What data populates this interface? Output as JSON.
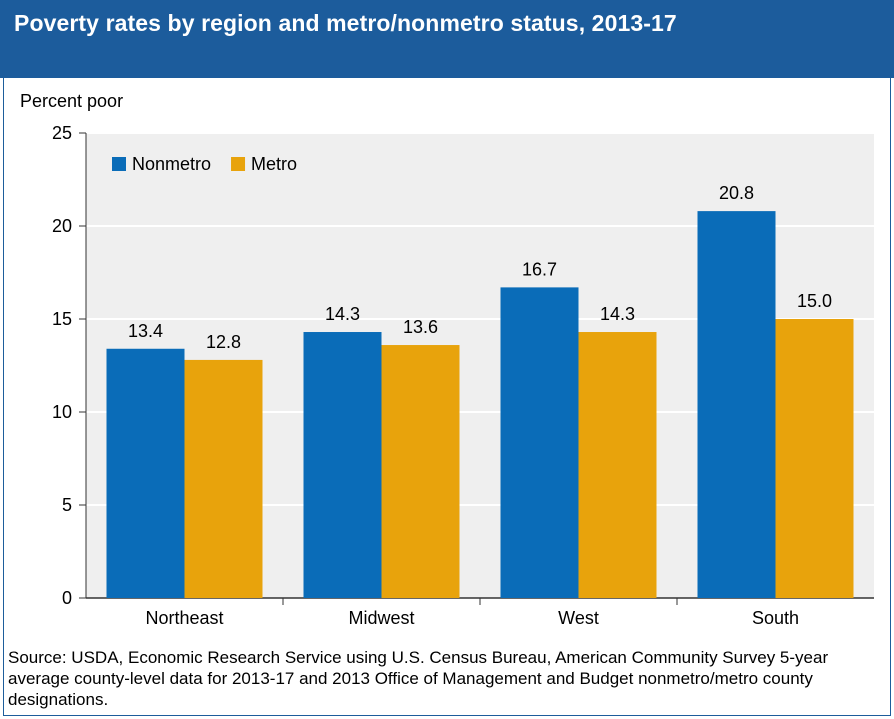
{
  "header": {
    "title": "Poverty rates by region and metro/nonmetro status, 2013-17",
    "bg_color": "#1c5c9c"
  },
  "chart_data": {
    "type": "bar",
    "title": "Poverty rates by region and metro/nonmetro status, 2013-17",
    "ylabel": "Percent poor",
    "xlabel": "",
    "categories": [
      "Northeast",
      "Midwest",
      "West",
      "South"
    ],
    "series": [
      {
        "name": "Nonmetro",
        "values": [
          13.4,
          14.3,
          16.7,
          20.8
        ],
        "color": "#0a6cb8"
      },
      {
        "name": "Metro",
        "values": [
          12.8,
          13.6,
          14.3,
          15.0
        ],
        "color": "#e8a30c"
      }
    ],
    "value_labels": [
      [
        "13.4",
        "14.3",
        "16.7",
        "20.8"
      ],
      [
        "12.8",
        "13.6",
        "14.3",
        "15.0"
      ]
    ],
    "ylim": [
      0,
      25
    ],
    "yticks": [
      0,
      5,
      10,
      15,
      20,
      25
    ],
    "grid": true,
    "legend_position": "top-left",
    "plot_bg": "#efefef",
    "grid_color": "#ffffff"
  },
  "source": "Source: USDA, Economic Research Service using U.S. Census Bureau, American Community Survey 5-year average county-level data for 2013-17 and 2013 Office of Management and Budget nonmetro/metro county designations."
}
